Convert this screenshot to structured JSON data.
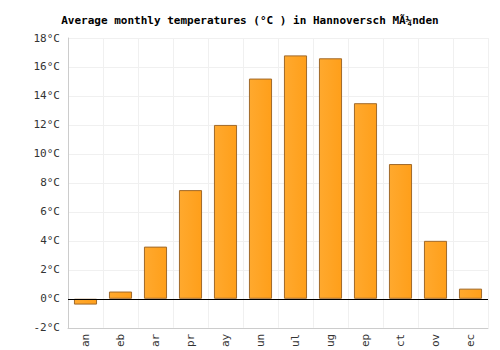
{
  "chart_data": {
    "type": "bar",
    "title": "Average monthly temperatures (°C ) in Hannoversch MÃ¼nden",
    "categories": [
      "an",
      "eb",
      "ar",
      "pr",
      "ay",
      "un",
      "ul",
      "ug",
      "ep",
      "ct",
      "ov",
      "ec"
    ],
    "values": [
      -0.4,
      0.5,
      3.6,
      7.5,
      12.0,
      15.2,
      16.8,
      16.6,
      13.5,
      9.3,
      4.0,
      0.7
    ],
    "color": "#ffa92e",
    "ylim": [
      -2,
      18
    ],
    "yticks": [
      {
        "value": -2,
        "label": "-2°C"
      },
      {
        "value": 0,
        "label": "0°C"
      },
      {
        "value": 2,
        "label": "2°C"
      },
      {
        "value": 4,
        "label": "4°C"
      },
      {
        "value": 6,
        "label": "6°C"
      },
      {
        "value": 8,
        "label": "8°C"
      },
      {
        "value": 10,
        "label": "10°C"
      },
      {
        "value": 12,
        "label": "12°C"
      },
      {
        "value": 14,
        "label": "14°C"
      },
      {
        "value": 16,
        "label": "16°C"
      },
      {
        "value": 18,
        "label": "18°C"
      }
    ],
    "grid": true
  }
}
